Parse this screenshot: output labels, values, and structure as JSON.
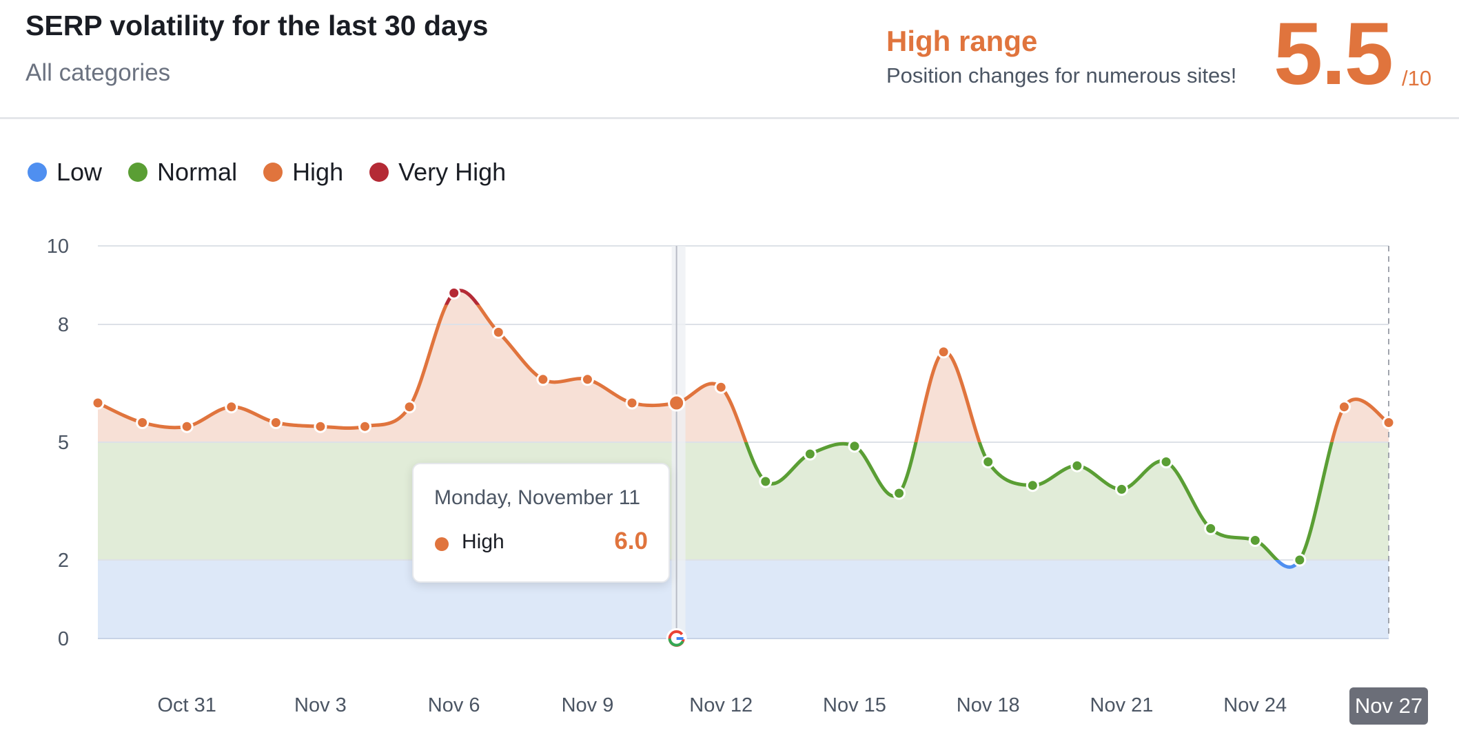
{
  "header": {
    "title": "SERP volatility for the last 30 days",
    "subtitle": "All categories",
    "range_label": "High range",
    "range_description": "Position changes for numerous sites!",
    "score": "5.5",
    "score_max": "/10"
  },
  "legend": [
    {
      "label": "Low",
      "color": "#4f8ff0"
    },
    {
      "label": "Normal",
      "color": "#5a9e34"
    },
    {
      "label": "High",
      "color": "#e0743d"
    },
    {
      "label": "Very High",
      "color": "#b42a35"
    }
  ],
  "tooltip": {
    "date": "Monday, November 11",
    "label": "High",
    "value": "6.0"
  },
  "last_date_badge": "Nov 27",
  "icons": {
    "google_marker": "google-g-icon"
  },
  "chart_data": {
    "type": "area",
    "title": "SERP volatility for the last 30 days",
    "x": [
      "Oct 29",
      "Oct 30",
      "Oct 31",
      "Nov 1",
      "Nov 2",
      "Nov 3",
      "Nov 4",
      "Nov 5",
      "Nov 6",
      "Nov 7",
      "Nov 8",
      "Nov 9",
      "Nov 10",
      "Nov 11",
      "Nov 12",
      "Nov 13",
      "Nov 14",
      "Nov 15",
      "Nov 16",
      "Nov 17",
      "Nov 18",
      "Nov 19",
      "Nov 20",
      "Nov 21",
      "Nov 22",
      "Nov 23",
      "Nov 24",
      "Nov 25",
      "Nov 26",
      "Nov 27"
    ],
    "series": [
      {
        "values": [
          6.0,
          5.5,
          5.4,
          5.9,
          5.5,
          5.4,
          5.4,
          5.9,
          8.8,
          7.8,
          6.6,
          6.6,
          6.0,
          6.0,
          6.4,
          4.0,
          4.7,
          4.9,
          3.7,
          7.3,
          4.5,
          3.9,
          4.4,
          3.8,
          4.5,
          2.8,
          2.5,
          2.0,
          5.9,
          5.5
        ]
      }
    ],
    "x_tick_labels": [
      "Oct 31",
      "Nov 3",
      "Nov 6",
      "Nov 9",
      "Nov 12",
      "Nov 15",
      "Nov 18",
      "Nov 21",
      "Nov 24",
      "Nov 27"
    ],
    "x_tick_indices": [
      2,
      5,
      8,
      11,
      14,
      17,
      20,
      23,
      26,
      29
    ],
    "y_ticks": [
      0,
      2,
      5,
      8,
      10
    ],
    "ylim": [
      0,
      10
    ],
    "bands": [
      {
        "name": "Low",
        "from": 0,
        "to": 2,
        "fill": "#dde8f8",
        "line": "#4f8ff0"
      },
      {
        "name": "Normal",
        "from": 2,
        "to": 5,
        "fill": "#e1ecd8",
        "line": "#5a9e34"
      },
      {
        "name": "High",
        "from": 5,
        "to": 8.5,
        "fill": "#f7e0d6",
        "line": "#e0743d"
      },
      {
        "name": "Very High",
        "from": 8.5,
        "to": 10,
        "fill": "#f7e0d6",
        "line": "#b42a35"
      }
    ],
    "highlight_index": 13,
    "google_update_index": 13,
    "grid": true,
    "legend_position": "top-left"
  }
}
